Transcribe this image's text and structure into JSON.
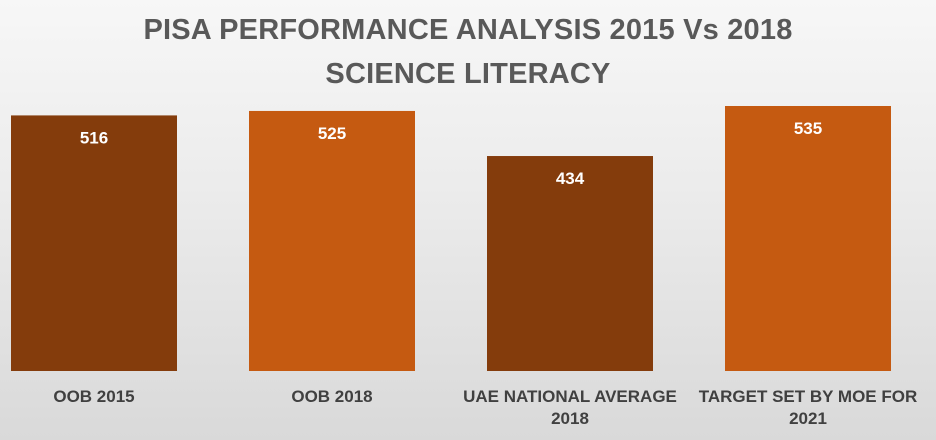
{
  "chart_data": {
    "type": "bar",
    "title": "PISA PERFORMANCE ANALYSIS 2015 Vs 2018",
    "subtitle": "SCIENCE LITERACY",
    "categories": [
      [
        "OOB 2015"
      ],
      [
        "OOB 2018"
      ],
      [
        "UAE NATIONAL AVERAGE",
        "2018"
      ],
      [
        "TARGET SET BY MOE FOR",
        "2021"
      ]
    ],
    "values": [
      516,
      525,
      434,
      535
    ],
    "bar_colors": [
      "#843c0c",
      "#c55a11",
      "#843c0c",
      "#c55a11"
    ],
    "label_color": "#ffffff",
    "ylim": [
      0,
      535
    ],
    "grid": false,
    "legend": "none"
  }
}
